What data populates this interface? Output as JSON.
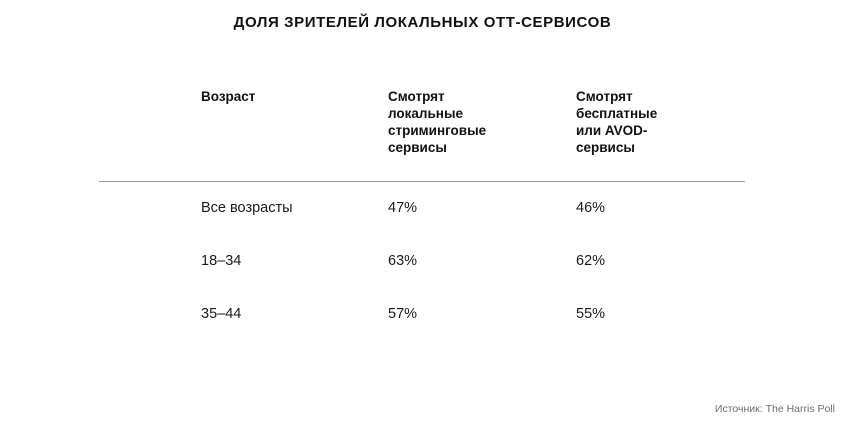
{
  "chart_data": {
    "type": "table",
    "title": "ДОЛЯ ЗРИТЕЛЕЙ ЛОКАЛЬНЫХ ОТТ-СЕРВИСОВ",
    "columns": [
      {
        "lines": [
          "Возраст"
        ]
      },
      {
        "lines": [
          "Смотрят",
          "локальные",
          "стриминговые",
          "сервисы"
        ]
      },
      {
        "lines": [
          "Смотрят",
          "бесплатные",
          "или AVOD-",
          "сервисы"
        ]
      }
    ],
    "rows": [
      [
        "Все возрасты",
        "47%",
        "46%"
      ],
      [
        "18–34",
        "63%",
        "62%"
      ],
      [
        "35–44",
        "57%",
        "55%"
      ]
    ],
    "source": "Источник: The Harris Poll"
  }
}
